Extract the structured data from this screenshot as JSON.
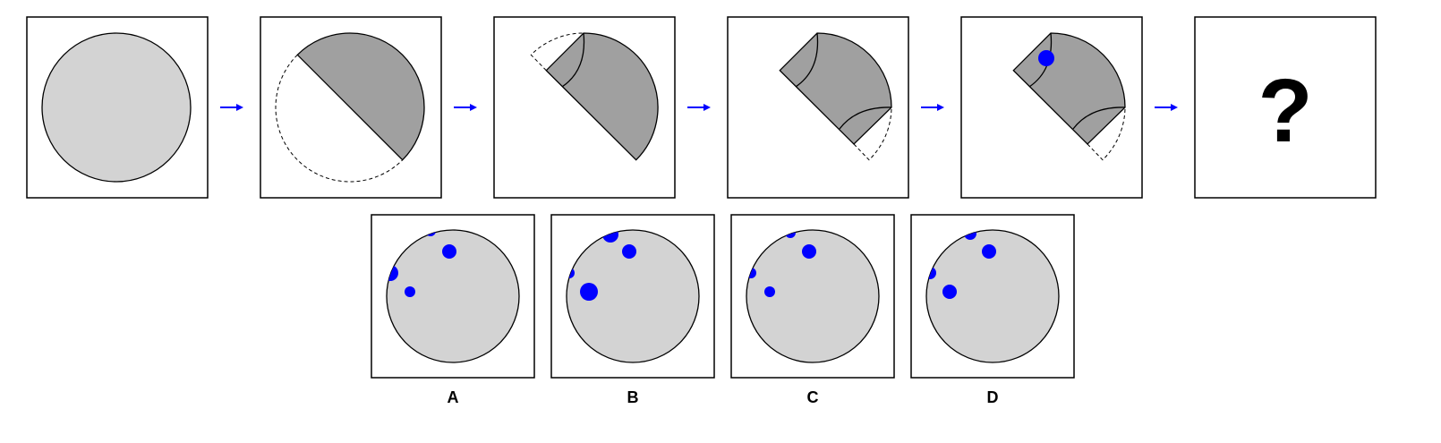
{
  "puzzle": {
    "question_mark": "?",
    "option_labels": [
      "A",
      "B",
      "C",
      "D"
    ]
  },
  "steps": [
    {
      "name": "circle-full",
      "description_icon": "full-circle"
    },
    {
      "name": "fold-half",
      "description_icon": "half-fold"
    },
    {
      "name": "fold-quarter",
      "description_icon": "quarter-fold"
    },
    {
      "name": "fold-eighth",
      "description_icon": "eighth-fold"
    },
    {
      "name": "punch-hole",
      "description_icon": "punched-fold"
    },
    {
      "name": "unknown-result",
      "description_icon": "question-mark"
    }
  ],
  "colors": {
    "paper_light": "#d3d3d3",
    "paper_folded": "#a0a0a0",
    "hole": "#0000ff",
    "arrow": "#0000ff",
    "frame": "#000000"
  }
}
